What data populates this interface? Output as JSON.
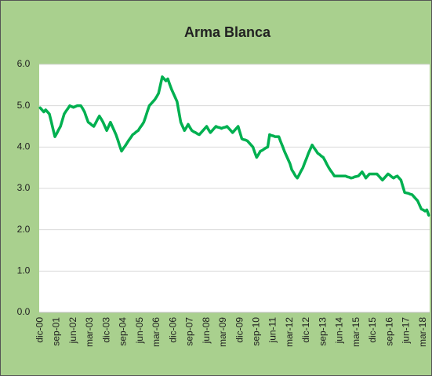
{
  "chart_data": {
    "type": "line",
    "title": "Arma Blanca",
    "categories": [
      "dic-00",
      null,
      null,
      null,
      null,
      null,
      null,
      null,
      null,
      "sep-01",
      null,
      null,
      null,
      null,
      null,
      null,
      null,
      null,
      "jun-02",
      null,
      null,
      null,
      null,
      null,
      null,
      null,
      null,
      "mar-03",
      null,
      null,
      null,
      null,
      null,
      null,
      null,
      null,
      "dic-03",
      null,
      null,
      null,
      null,
      null,
      null,
      null,
      null,
      "sep-04",
      null,
      null,
      null,
      null,
      null,
      null,
      null,
      null,
      "jun-05",
      null,
      null,
      null,
      null,
      null,
      null,
      null,
      null,
      "mar-06",
      null,
      null,
      null,
      null,
      null,
      null,
      null,
      null,
      "dic-06",
      null,
      null,
      null,
      null,
      null,
      null,
      null,
      null,
      "sep-07",
      null,
      null,
      null,
      null,
      null,
      null,
      null,
      null,
      "jun-08",
      null,
      null,
      null,
      null,
      null,
      null,
      null,
      null,
      "mar-09",
      null,
      null,
      null,
      null,
      null,
      null,
      null,
      null,
      "dic-09",
      null,
      null,
      null,
      null,
      null,
      null,
      null,
      null,
      "sep-10",
      null,
      null,
      null,
      null,
      null,
      null,
      null,
      null,
      "jun-11",
      null,
      null,
      null,
      null,
      null,
      null,
      null,
      null,
      "mar-12",
      null,
      null,
      null,
      null,
      null,
      null,
      null,
      null,
      "dic-12",
      null,
      null,
      null,
      null,
      null,
      null,
      null,
      null,
      "sep-13",
      null,
      null,
      null,
      null,
      null,
      null,
      null,
      null,
      "jun-14",
      null,
      null,
      null,
      null,
      null,
      null,
      null,
      null,
      "mar-15",
      null,
      null,
      null,
      null,
      null,
      null,
      null,
      null,
      "dic-15",
      null,
      null,
      null,
      null,
      null,
      null,
      null,
      null,
      "sep-16",
      null,
      null,
      null,
      null,
      null,
      null,
      null,
      null,
      "jun-17",
      null,
      null,
      null,
      null,
      null,
      null,
      null,
      null,
      "mar-18",
      null,
      null,
      null
    ],
    "series": [
      {
        "color": "#00b050",
        "values": [
          4.95,
          4.9,
          4.85,
          4.9,
          4.85,
          4.8,
          4.62,
          4.43,
          4.25,
          4.33,
          4.42,
          4.5,
          4.65,
          4.8,
          4.87,
          4.93,
          5.0,
          4.98,
          4.96,
          4.98,
          5.0,
          5.0,
          5.0,
          4.93,
          4.85,
          4.72,
          4.6,
          4.57,
          4.53,
          4.5,
          4.58,
          4.67,
          4.75,
          4.68,
          4.6,
          4.5,
          4.4,
          4.5,
          4.6,
          4.5,
          4.4,
          4.3,
          4.17,
          4.03,
          3.9,
          3.97,
          4.03,
          4.1,
          4.17,
          4.23,
          4.3,
          4.33,
          4.37,
          4.4,
          4.47,
          4.53,
          4.6,
          4.73,
          4.87,
          5.0,
          5.05,
          5.1,
          5.15,
          5.22,
          5.3,
          5.5,
          5.7,
          5.65,
          5.6,
          5.65,
          5.52,
          5.4,
          5.3,
          5.2,
          5.1,
          4.85,
          4.6,
          4.5,
          4.4,
          4.47,
          4.55,
          4.47,
          4.4,
          4.37,
          4.35,
          4.32,
          4.3,
          4.35,
          4.4,
          4.45,
          4.5,
          4.42,
          4.35,
          4.4,
          4.45,
          4.5,
          4.48,
          4.47,
          4.45,
          4.47,
          4.48,
          4.5,
          4.45,
          4.4,
          4.35,
          4.4,
          4.45,
          4.5,
          4.35,
          4.2,
          4.18,
          4.17,
          4.15,
          4.1,
          4.05,
          4.0,
          3.87,
          3.75,
          3.82,
          3.9,
          3.92,
          3.95,
          3.98,
          4.0,
          4.3,
          4.28,
          4.27,
          4.25,
          4.25,
          4.25,
          4.13,
          4.02,
          3.9,
          3.8,
          3.7,
          3.6,
          3.45,
          3.38,
          3.3,
          3.25,
          3.33,
          3.42,
          3.5,
          3.62,
          3.73,
          3.85,
          3.95,
          4.05,
          3.98,
          3.92,
          3.85,
          3.82,
          3.78,
          3.75,
          3.67,
          3.58,
          3.5,
          3.43,
          3.37,
          3.3,
          3.3,
          3.3,
          3.3,
          3.3,
          3.3,
          3.3,
          3.28,
          3.27,
          3.25,
          3.26,
          3.28,
          3.29,
          3.3,
          3.35,
          3.4,
          3.33,
          3.25,
          3.3,
          3.35,
          3.35,
          3.35,
          3.35,
          3.35,
          3.3,
          3.25,
          3.2,
          3.25,
          3.3,
          3.35,
          3.32,
          3.28,
          3.25,
          3.28,
          3.3,
          3.25,
          3.2,
          3.05,
          2.9,
          2.89,
          2.88,
          2.86,
          2.85,
          2.8,
          2.75,
          2.7,
          2.6,
          2.5,
          2.48,
          2.45,
          2.48,
          2.35
        ]
      }
    ],
    "ylim": [
      0,
      6
    ],
    "yticks": [
      {
        "value": 0,
        "label": "0.0"
      },
      {
        "value": 1,
        "label": "1.0"
      },
      {
        "value": 2,
        "label": "2.0"
      },
      {
        "value": 3,
        "label": "3.0"
      },
      {
        "value": 4,
        "label": "4.0"
      },
      {
        "value": 5,
        "label": "5.0"
      },
      {
        "value": 6,
        "label": "6.0"
      }
    ],
    "grid": true,
    "background": "#a9d08e"
  }
}
